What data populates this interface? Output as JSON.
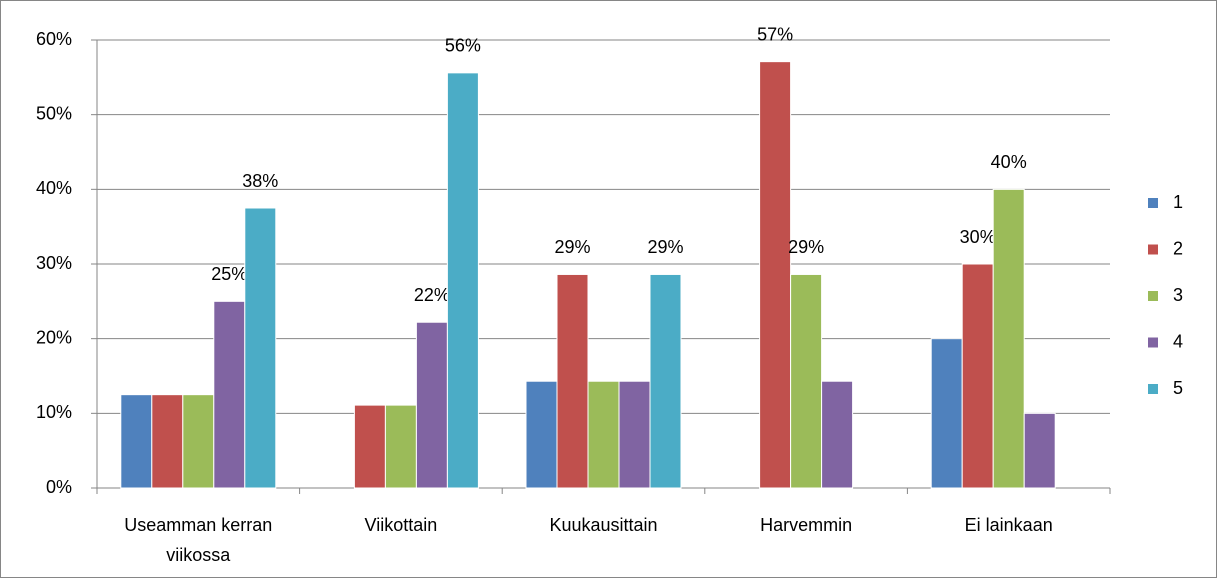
{
  "chart_data": {
    "type": "bar",
    "categories": [
      "Useamman kerran viikossa",
      "Viikottain",
      "Kuukausittain",
      "Harvemmin",
      "Ei lainkaan"
    ],
    "series": [
      {
        "name": "1",
        "color": "#4f81bd",
        "values": [
          12.5,
          0,
          14.3,
          0,
          20
        ],
        "value_labels": [
          null,
          null,
          null,
          null,
          null
        ]
      },
      {
        "name": "2",
        "color": "#c0504d",
        "values": [
          12.5,
          11.1,
          28.6,
          57.1,
          30
        ],
        "value_labels": [
          null,
          null,
          "29%",
          "57%",
          "30%"
        ]
      },
      {
        "name": "3",
        "color": "#9bbb59",
        "values": [
          12.5,
          11.1,
          14.3,
          28.6,
          40
        ],
        "value_labels": [
          null,
          null,
          null,
          "29%",
          "40%"
        ]
      },
      {
        "name": "4",
        "color": "#8064a2",
        "values": [
          25,
          22.2,
          14.3,
          14.3,
          10
        ],
        "value_labels": [
          "25%",
          "22%",
          null,
          null,
          null
        ]
      },
      {
        "name": "5",
        "color": "#4bacc6",
        "values": [
          37.5,
          55.6,
          28.6,
          0,
          0
        ],
        "value_labels": [
          "38%",
          "56%",
          "29%",
          null,
          null
        ]
      }
    ],
    "ylim": [
      0,
      60
    ],
    "yticks": [
      {
        "value": 0,
        "label": "0%"
      },
      {
        "value": 10,
        "label": "10%"
      },
      {
        "value": 20,
        "label": "20%"
      },
      {
        "value": 30,
        "label": "30%"
      },
      {
        "value": 40,
        "label": "40%"
      },
      {
        "value": 50,
        "label": "50%"
      },
      {
        "value": 60,
        "label": "60%"
      }
    ],
    "grid": true,
    "legend": "right"
  }
}
